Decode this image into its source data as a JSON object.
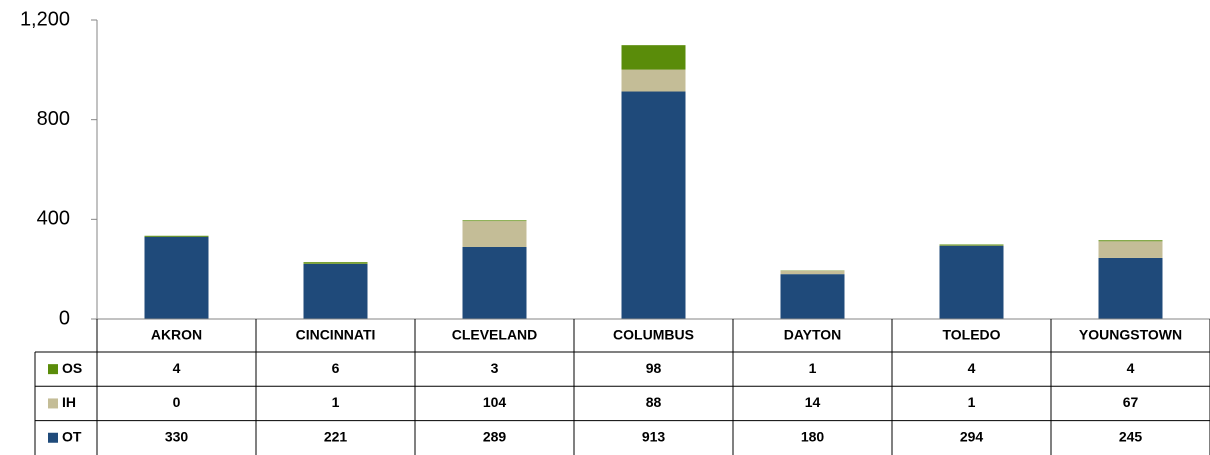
{
  "chart_data": {
    "type": "bar",
    "stacked": true,
    "categories": [
      "AKRON",
      "CINCINNATI",
      "CLEVELAND",
      "COLUMBUS",
      "DAYTON",
      "TOLEDO",
      "YOUNGSTOWN"
    ],
    "series": [
      {
        "name": "OS",
        "color": "#5a8c0a",
        "values": [
          4,
          6,
          3,
          98,
          1,
          4,
          4
        ]
      },
      {
        "name": "IH",
        "color": "#c4bd97",
        "values": [
          0,
          1,
          104,
          88,
          14,
          1,
          67
        ]
      },
      {
        "name": "OT",
        "color": "#1f4a7a",
        "values": [
          330,
          221,
          289,
          913,
          180,
          294,
          245
        ]
      }
    ],
    "ylim": [
      0,
      1200
    ],
    "yticks": [
      0,
      400,
      800,
      {
        "value": 1200,
        "label": "1,200"
      }
    ]
  }
}
